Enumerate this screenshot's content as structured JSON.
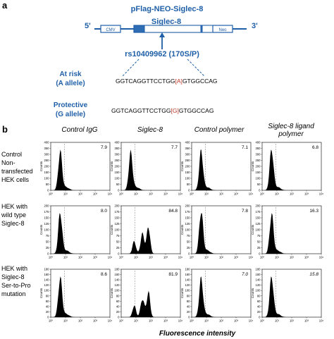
{
  "panel_a": {
    "label": "a",
    "construct_title": "pFlag-NEO-Siglec-8",
    "gene_label": "Siglec-8",
    "five_prime": "5'",
    "three_prime": "3'",
    "cmv_label": "CMV",
    "neo_label": "Neo",
    "snp_label": "rs10409962 (170S/P)",
    "at_risk_line1": "At risk",
    "at_risk_line2": "(A allele)",
    "at_risk_seq_before": "GGTCAGGTTCCTGG",
    "at_risk_allele": "[A]",
    "at_risk_seq_after": "GTGGCCAG",
    "protective_line1": "Protective",
    "protective_line2": "(G allele)",
    "protective_seq_before": "GGTCAGGTTCCTGG",
    "protective_allele": "[G]",
    "protective_seq_after": "GTGGCCAG",
    "colors": {
      "blue": "#1f5fa8",
      "allele_red": "#c0392b",
      "gene_fill": "#2e6db4"
    }
  },
  "panel_b": {
    "label": "b",
    "columns": [
      "Control IgG",
      "Siglec-8",
      "Control polymer",
      "Siglec-8 ligand polymer"
    ],
    "rows": [
      [
        "Control",
        "Non-",
        "transfected",
        "HEK cells"
      ],
      [
        "HEK with",
        "wild type",
        "Siglec-8"
      ],
      [
        "HEK with",
        "Siglec-8",
        "Ser-to-Pro",
        "mutation"
      ]
    ],
    "x_axis_label": "Fluorescence intensity",
    "y_axis_label": "Counts",
    "x_ticks": [
      "10⁰",
      "10¹",
      "10²",
      "10³",
      "10⁴"
    ]
  },
  "chart_data": [
    {
      "type": "histogram",
      "row": "Control Non-transfected HEK cells",
      "y_ticks": [
        "0",
        "50",
        "100",
        "150",
        "200",
        "250",
        "300",
        "350",
        "400"
      ],
      "values": [
        "7.9",
        "7.7",
        "7.1",
        "6.8"
      ],
      "ylim": [
        0,
        400
      ]
    },
    {
      "type": "histogram",
      "row": "HEK with wild type Siglec-8",
      "y_ticks": [
        "0",
        "25",
        "50",
        "75",
        "100",
        "125",
        "150",
        "175",
        "200"
      ],
      "values": [
        "8.0",
        "84.8",
        "7.8",
        "16.3"
      ],
      "ylim": [
        0,
        200
      ]
    },
    {
      "type": "histogram",
      "row": "HEK with Siglec-8 Ser-to-Pro mutation",
      "y_ticks": [
        "0",
        "20",
        "40",
        "60",
        "80",
        "100",
        "120",
        "140",
        "160",
        "180"
      ],
      "values": [
        "8.6",
        "81.9",
        "7.0",
        "15.8"
      ],
      "ylim": [
        0,
        180
      ]
    }
  ]
}
